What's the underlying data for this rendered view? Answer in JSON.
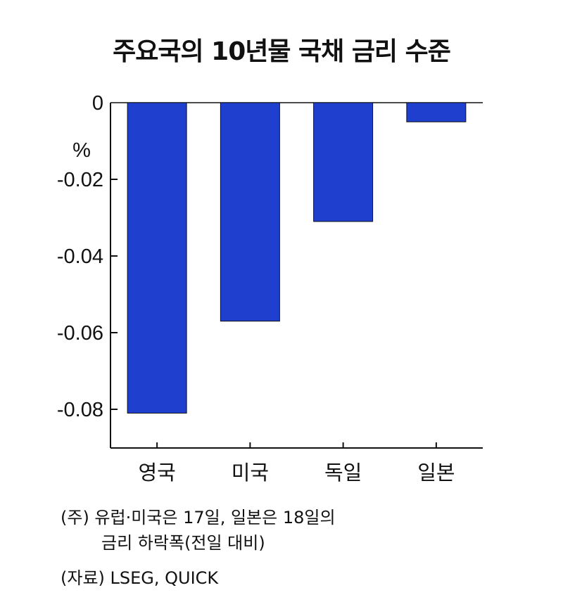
{
  "chart_data": {
    "type": "bar",
    "title": "주요국의 10년물 국채 금리 수준",
    "ylabel": "%",
    "categories": [
      "영국",
      "미국",
      "독일",
      "일본"
    ],
    "values": [
      -0.081,
      -0.057,
      -0.031,
      -0.005
    ],
    "ylim": [
      -0.09,
      0
    ],
    "yticks": [
      0,
      -0.02,
      -0.04,
      -0.06,
      -0.08
    ],
    "ytick_labels": [
      "0",
      "-0.02",
      "-0.04",
      "-0.06",
      "-0.08"
    ],
    "bar_color": "#1f3fcf",
    "grid": false,
    "legend": "none"
  },
  "notes": {
    "line1": "(주) 유럽·미국은 17일, 일본은 18일의",
    "line2": "금리 하락폭(전일 대비)",
    "source": "(자료) LSEG, QUICK"
  }
}
